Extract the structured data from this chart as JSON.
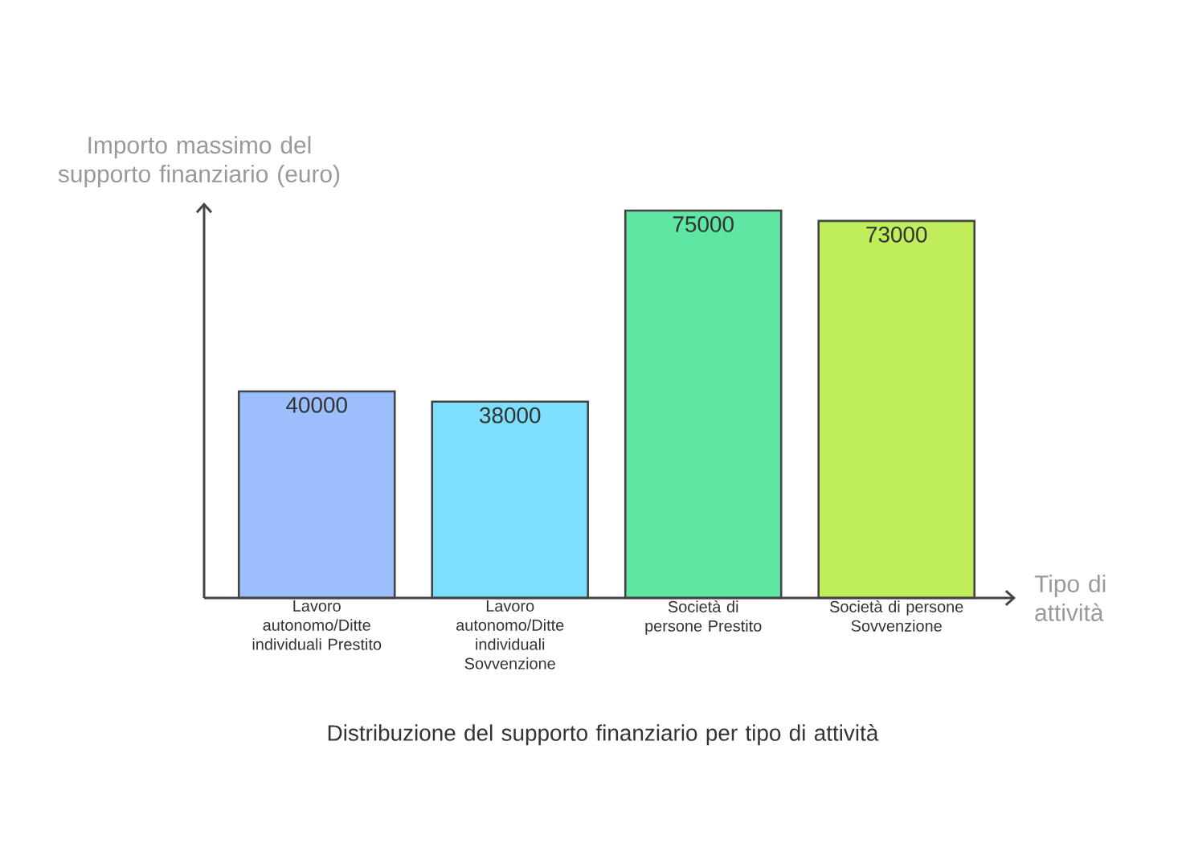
{
  "chart_data": {
    "type": "bar",
    "title": "Distribuzione del supporto finanziario per tipo di attività",
    "xlabel": "Tipo di attività",
    "ylabel": "Importo massimo del supporto finanziario (euro)",
    "categories": [
      "Lavoro autonomo/Ditte individuali Prestito",
      "Lavoro autonomo/Ditte individuali Sovvenzione",
      "Società di persone Prestito",
      "Società di persone Sovvenzione"
    ],
    "values": [
      40000,
      38000,
      75000,
      73000
    ],
    "colors": [
      "#9bbffc",
      "#7ddffc",
      "#5ee6a2",
      "#c0ed5a"
    ],
    "data_labels": true
  }
}
